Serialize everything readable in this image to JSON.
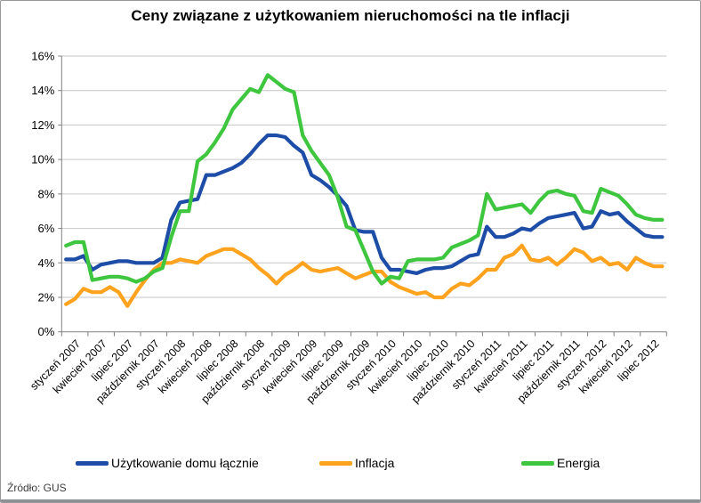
{
  "window": {
    "background": "#ffffff",
    "border_color": "#989898",
    "grid_color": "#c6c6c6",
    "axis_color": "#808080",
    "text_color": "#000000"
  },
  "source": "Źródło: GUS",
  "chart_data": {
    "type": "line",
    "title": "Ceny związane z użytkowaniem nieruchomości na tle inflacji",
    "xlabel": "",
    "ylabel": "",
    "ylim": [
      0,
      16
    ],
    "y_tick_step": 2,
    "y_tick_labels": [
      "0%",
      "2%",
      "4%",
      "6%",
      "8%",
      "10%",
      "12%",
      "14%",
      "16%"
    ],
    "grid": true,
    "legend_position": "bottom",
    "months_start": "styczeń 2007",
    "months_end": "wrzesień 2012",
    "n_points": 69,
    "x_tick_labels": [
      "styczeń 2007",
      "kwiecień 2007",
      "lipiec 2007",
      "październik 2007",
      "styczeń 2008",
      "kwiecień 2008",
      "lipiec 2008",
      "październik 2008",
      "styczeń 2009",
      "kwiecień 2009",
      "lipiec 2009",
      "październik 2009",
      "styczeń 2010",
      "kwiecień 2010",
      "lipiec 2010",
      "październik 2010",
      "styczeń 2011",
      "kwiecień 2011",
      "lipiec 2011",
      "październik 2011",
      "styczeń 2012",
      "kwiecień 2012",
      "lipiec 2012"
    ],
    "series": [
      {
        "name": "Użytkowanie domu łącznie",
        "color": "#1d4da6",
        "values": [
          4.2,
          4.2,
          4.4,
          3.6,
          3.9,
          4.0,
          4.1,
          4.1,
          4.0,
          4.0,
          4.0,
          4.3,
          6.5,
          7.5,
          7.6,
          7.7,
          9.1,
          9.1,
          9.3,
          9.5,
          9.8,
          10.3,
          10.9,
          11.4,
          11.4,
          11.3,
          10.8,
          10.4,
          9.1,
          8.8,
          8.4,
          7.9,
          7.3,
          5.9,
          5.8,
          5.8,
          4.3,
          3.6,
          3.6,
          3.5,
          3.4,
          3.6,
          3.7,
          3.7,
          3.8,
          4.1,
          4.4,
          4.5,
          6.1,
          5.5,
          5.5,
          5.7,
          6.0,
          5.9,
          6.3,
          6.6,
          6.7,
          6.8,
          6.9,
          6.0,
          6.1,
          7.0,
          6.8,
          6.9,
          6.4,
          6.0,
          5.6,
          5.5,
          5.5
        ]
      },
      {
        "name": "Inflacja",
        "color": "#ffa21d",
        "values": [
          1.6,
          1.9,
          2.5,
          2.3,
          2.3,
          2.6,
          2.3,
          1.5,
          2.3,
          3.0,
          3.6,
          4.0,
          4.0,
          4.2,
          4.1,
          4.0,
          4.4,
          4.6,
          4.8,
          4.8,
          4.5,
          4.2,
          3.7,
          3.3,
          2.8,
          3.3,
          3.6,
          4.0,
          3.6,
          3.5,
          3.6,
          3.7,
          3.4,
          3.1,
          3.3,
          3.5,
          3.5,
          2.9,
          2.6,
          2.4,
          2.2,
          2.3,
          2.0,
          2.0,
          2.5,
          2.8,
          2.7,
          3.1,
          3.6,
          3.6,
          4.3,
          4.5,
          5.0,
          4.2,
          4.1,
          4.3,
          3.9,
          4.3,
          4.8,
          4.6,
          4.1,
          4.3,
          3.9,
          4.0,
          3.6,
          4.3,
          4.0,
          3.8,
          3.8
        ]
      },
      {
        "name": "Energia",
        "color": "#3fc63f",
        "values": [
          5.0,
          5.2,
          5.2,
          3.0,
          3.1,
          3.2,
          3.2,
          3.1,
          2.9,
          3.1,
          3.5,
          3.7,
          5.5,
          7.0,
          7.0,
          9.9,
          10.3,
          11.0,
          11.8,
          12.9,
          13.5,
          14.1,
          13.9,
          14.9,
          14.5,
          14.1,
          13.9,
          11.4,
          10.5,
          9.8,
          9.1,
          7.8,
          6.1,
          5.9,
          4.7,
          3.5,
          2.8,
          3.2,
          3.1,
          4.1,
          4.2,
          4.2,
          4.2,
          4.3,
          4.9,
          5.1,
          5.3,
          5.6,
          8.0,
          7.1,
          7.2,
          7.3,
          7.4,
          6.9,
          7.6,
          8.1,
          8.2,
          8.0,
          7.9,
          7.0,
          6.9,
          8.3,
          8.1,
          7.9,
          7.4,
          6.8,
          6.6,
          6.5,
          6.5
        ]
      }
    ]
  },
  "legend": {
    "items": [
      {
        "label": "Użytkowanie domu łącznie"
      },
      {
        "label": "Inflacja"
      },
      {
        "label": "Energia"
      }
    ]
  }
}
